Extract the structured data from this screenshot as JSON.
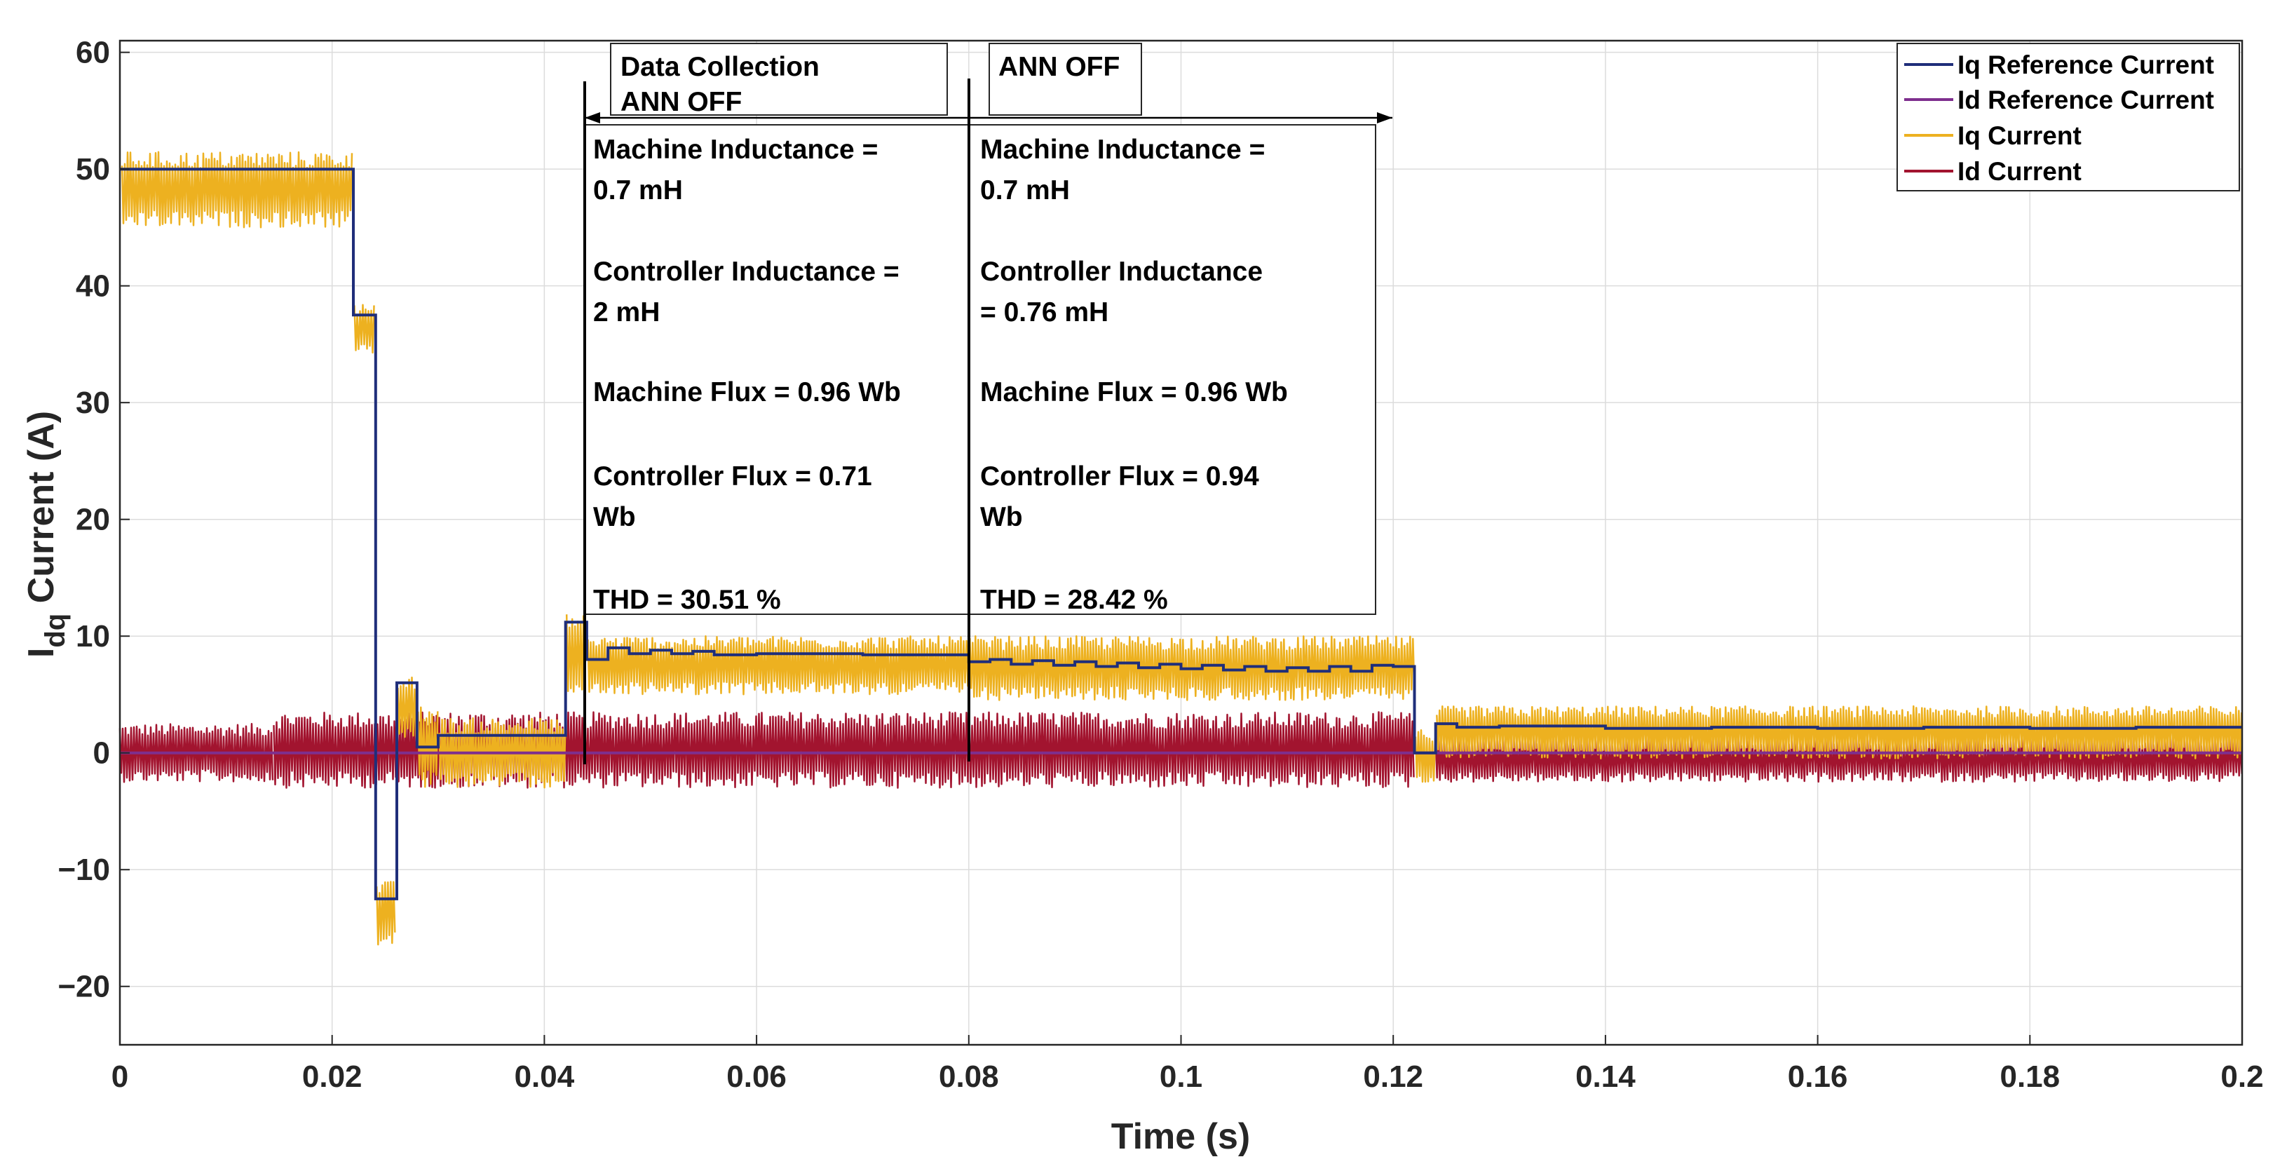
{
  "chart_data": {
    "type": "line",
    "title": "",
    "xlabel": "Time (s)",
    "ylabel_main": "I",
    "ylabel_sub": "dq",
    "ylabel_rest": " Current (A)",
    "xlim": [
      0,
      0.2
    ],
    "ylim": [
      -25,
      61
    ],
    "grid": true,
    "legend_position": "top-right",
    "x_ticks": [
      0,
      0.02,
      0.04,
      0.06,
      0.08,
      0.1,
      0.12,
      0.14,
      0.16,
      0.18,
      0.2
    ],
    "x_tick_labels": [
      "0",
      "0.02",
      "0.04",
      "0.06",
      "0.08",
      "0.1",
      "0.12",
      "0.14",
      "0.16",
      "0.18",
      "0.2"
    ],
    "y_ticks": [
      -20,
      -10,
      0,
      10,
      20,
      30,
      40,
      50,
      60
    ],
    "y_tick_labels": [
      "−20",
      "−10",
      "0",
      "10",
      "20",
      "30",
      "40",
      "50",
      "60"
    ],
    "colors": {
      "iq_ref": "#1f2e7a",
      "id_ref": "#7e2f8e",
      "iq": "#edb120",
      "id": "#a2142f",
      "grid": "#dcdcdc",
      "frame": "#262626",
      "blue_text": "#0072bd",
      "red_text": "#ff0000"
    },
    "series": [
      {
        "name": "Iq Reference Current",
        "style": "step",
        "x": [
          0,
          0.022,
          0.0241,
          0.0261,
          0.028,
          0.03,
          0.042,
          0.044,
          0.046,
          0.048,
          0.05,
          0.052,
          0.054,
          0.056,
          0.06,
          0.07,
          0.08,
          0.082,
          0.084,
          0.086,
          0.088,
          0.09,
          0.092,
          0.094,
          0.096,
          0.098,
          0.1,
          0.102,
          0.104,
          0.106,
          0.108,
          0.11,
          0.112,
          0.114,
          0.116,
          0.118,
          0.12,
          0.122,
          0.124,
          0.126,
          0.13,
          0.14,
          0.15,
          0.16,
          0.17,
          0.18,
          0.19
        ],
        "y": [
          50,
          37.5,
          -12.5,
          6,
          0.5,
          1.5,
          11.2,
          8,
          9,
          8.5,
          8.8,
          8.5,
          8.7,
          8.4,
          8.5,
          8.4,
          7.8,
          8,
          7.6,
          7.9,
          7.5,
          7.8,
          7.4,
          7.7,
          7.3,
          7.6,
          7.2,
          7.5,
          7.1,
          7.4,
          7.0,
          7.3,
          7.0,
          7.4,
          7.0,
          7.5,
          7.4,
          0,
          2.5,
          2.2,
          2.3,
          2.1,
          2.2,
          2.1,
          2.2,
          2.1,
          2.2
        ],
        "x_end": 0.2
      },
      {
        "name": "Id Reference Current",
        "style": "step",
        "x": [
          0
        ],
        "y": [
          0
        ],
        "x_end": 0.2
      },
      {
        "name": "Iq Current",
        "style": "noise_band",
        "bands": [
          {
            "x0": 0.0002,
            "x1": 0.022,
            "lo": 45,
            "hi": 51.5
          },
          {
            "x0": 0.0221,
            "x1": 0.024,
            "lo": 34,
            "hi": 38.5
          },
          {
            "x0": 0.0242,
            "x1": 0.026,
            "lo": -16.5,
            "hi": -11
          },
          {
            "x0": 0.0262,
            "x1": 0.028,
            "lo": 1,
            "hi": 6.5
          },
          {
            "x0": 0.0281,
            "x1": 0.03,
            "lo": -3,
            "hi": 4
          },
          {
            "x0": 0.0301,
            "x1": 0.042,
            "lo": -3,
            "hi": 3
          },
          {
            "x0": 0.0421,
            "x1": 0.044,
            "lo": 5,
            "hi": 12
          },
          {
            "x0": 0.0441,
            "x1": 0.08,
            "lo": 5,
            "hi": 10
          },
          {
            "x0": 0.0801,
            "x1": 0.122,
            "lo": 4.5,
            "hi": 10
          },
          {
            "x0": 0.1221,
            "x1": 0.124,
            "lo": -2.5,
            "hi": 2
          },
          {
            "x0": 0.1241,
            "x1": 0.2,
            "lo": -0.5,
            "hi": 4
          }
        ]
      },
      {
        "name": "Id Current",
        "style": "noise_band",
        "bands": [
          {
            "x0": 0,
            "x1": 0.0145,
            "lo": -2.5,
            "hi": 2.5
          },
          {
            "x0": 0.0145,
            "x1": 0.122,
            "lo": -3,
            "hi": 3.5
          },
          {
            "x0": 0.124,
            "x1": 0.2,
            "lo": -2.5,
            "hi": 1.5
          }
        ]
      }
    ],
    "annotations": {
      "box_a_title_line1": "Data Collection",
      "box_a_title_line2": "ANN OFF",
      "box_b_title": "ANN OFF",
      "left_text": [
        "Machine Inductance =",
        "0.7 mH",
        "Controller Inductance =",
        "2 mH",
        "Machine Flux = 0.96 Wb",
        "Controller Flux = 0.71",
        "Wb",
        "THD  = 30.51 %"
      ],
      "right_text": [
        "Machine Inductance =",
        "0.7 mH",
        "Controller Inductance",
        "= 0.76 mH",
        "Machine Flux = 0.96 Wb",
        "Controller Flux = 0.94",
        "Wb",
        "THD  = 28.42 %"
      ]
    }
  }
}
